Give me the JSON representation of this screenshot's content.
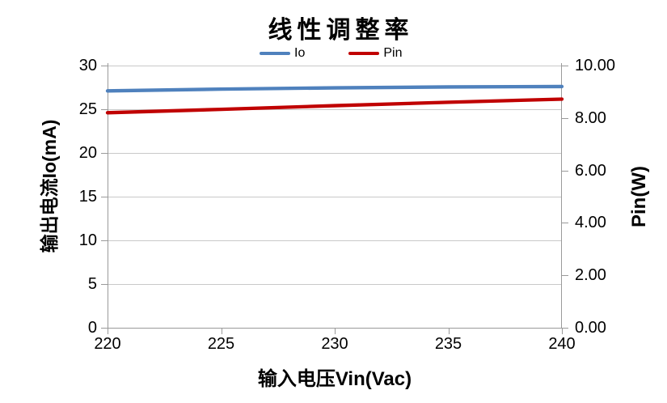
{
  "chart_data": {
    "type": "line",
    "title": "线性调整率",
    "xlabel": "输入电压Vin(Vac)",
    "ylabel_left": "输出电流Io(mA)",
    "ylabel_right": "Pin(W)",
    "x": [
      220,
      225,
      230,
      235,
      240
    ],
    "xticklabels": [
      "220",
      "225",
      "230",
      "235",
      "240"
    ],
    "xlim": [
      220,
      240
    ],
    "ylim_left": [
      0,
      30
    ],
    "yticklabels_left": [
      "0",
      "5",
      "10",
      "15",
      "20",
      "25",
      "30"
    ],
    "ylim_right": [
      0,
      10
    ],
    "yticklabels_right": [
      "0.00",
      "2.00",
      "4.00",
      "6.00",
      "8.00",
      "10.00"
    ],
    "grid": true,
    "legend_position": "top",
    "series": [
      {
        "name": "Io",
        "axis": "left",
        "color": "#4F81BD",
        "values": [
          27.1,
          27.3,
          27.45,
          27.55,
          27.6
        ]
      },
      {
        "name": "Pin",
        "axis": "right",
        "color": "#C00000",
        "values": [
          8.2,
          8.33,
          8.47,
          8.6,
          8.72
        ]
      }
    ],
    "colors": {
      "gridline": "#C9C9C9",
      "axis_line": "#9A9A9A",
      "background": "#FFFFFF",
      "text": "#000000"
    }
  }
}
